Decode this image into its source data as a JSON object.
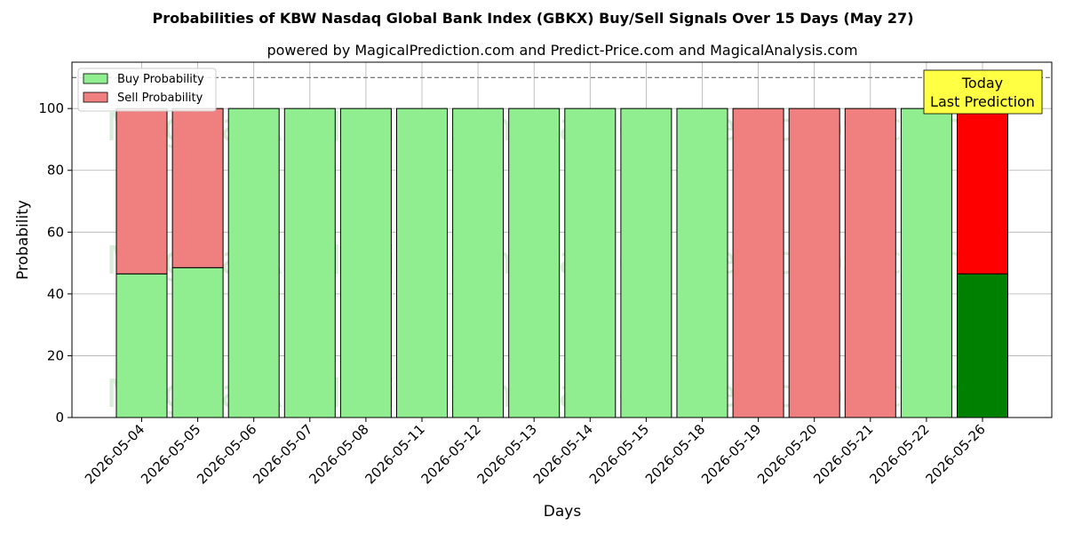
{
  "chart_data": {
    "type": "bar",
    "stacked": true,
    "title": "Probabilities of KBW Nasdaq Global Bank Index (GBKX) Buy/Sell Signals Over 15 Days (May 27)",
    "subtitle": "powered by MagicalPrediction.com and Predict-Price.com and MagicalAnalysis.com",
    "xlabel": "Days",
    "ylabel": "Probability",
    "ylim": [
      0,
      115
    ],
    "yticks": [
      0,
      20,
      40,
      60,
      80,
      100
    ],
    "grid": true,
    "legend_position": "top-left",
    "reference_line": 110,
    "categories": [
      "2026-05-04",
      "2026-05-05",
      "2026-05-06",
      "2026-05-07",
      "2026-05-08",
      "2026-05-11",
      "2026-05-12",
      "2026-05-13",
      "2026-05-14",
      "2026-05-15",
      "2026-05-18",
      "2026-05-19",
      "2026-05-20",
      "2026-05-21",
      "2026-05-22",
      "2026-05-26"
    ],
    "series": [
      {
        "name": "Buy Probability",
        "color": "#90ee90",
        "highlight_color": "#008000",
        "values": [
          46.5,
          48.5,
          100,
          100,
          100,
          100,
          100,
          100,
          100,
          100,
          100,
          0,
          0,
          0,
          100,
          46.5
        ]
      },
      {
        "name": "Sell Probability",
        "color": "#f08080",
        "highlight_color": "#ff0000",
        "values": [
          53.5,
          51.5,
          0,
          0,
          0,
          0,
          0,
          0,
          0,
          0,
          0,
          100,
          100,
          100,
          0,
          53.5
        ]
      }
    ],
    "highlight_index": 15,
    "annotation": {
      "lines": [
        "Today",
        "Last Prediction"
      ],
      "background": "#ffff44"
    },
    "watermarks": [
      "MagicalAnalysis.com",
      "MagicalPrediction.com"
    ]
  }
}
